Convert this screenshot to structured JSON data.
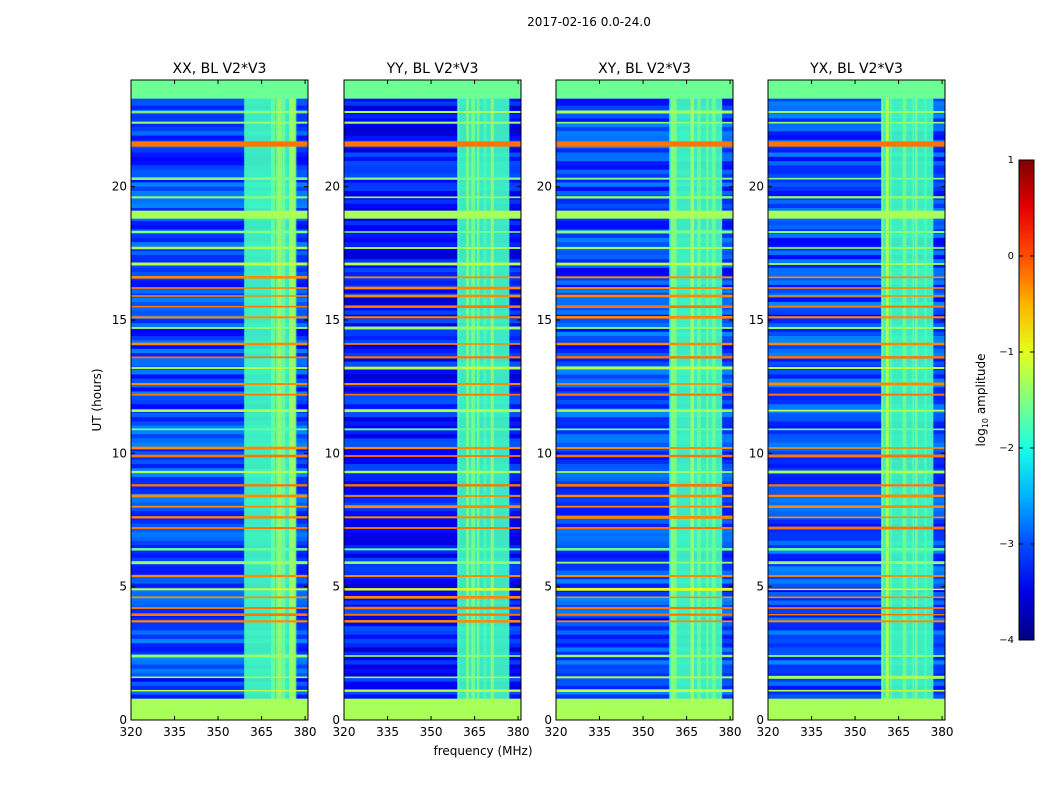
{
  "suptitle": "2017-02-16 0.0-24.0",
  "chart_data": {
    "type": "heatmap",
    "x_label": "frequency (MHz)",
    "y_label": "UT (hours)",
    "x_range": [
      320,
      381
    ],
    "y_range": [
      0,
      24
    ],
    "x_ticks": [
      320,
      335,
      350,
      365,
      380
    ],
    "y_ticks": [
      0,
      5,
      10,
      15,
      20
    ],
    "rfi_band_mhz": [
      359,
      377
    ],
    "panels": [
      {
        "title": "XX, BL V2*V3",
        "pol": "XX"
      },
      {
        "title": "YY, BL V2*V3",
        "pol": "YY"
      },
      {
        "title": "XY, BL V2*V3",
        "pol": "XY"
      },
      {
        "title": "YX, BL V2*V3",
        "pol": "YX"
      }
    ],
    "dense_bands_ut": [
      {
        "from": 0.0,
        "to": 0.8,
        "level": -1.3
      },
      {
        "from": 18.8,
        "to": 19.1,
        "level": -1.3
      },
      {
        "from": 21.5,
        "to": 21.7,
        "level": -0.2
      },
      {
        "from": 23.3,
        "to": 24.0,
        "level": -1.6
      }
    ],
    "flagged_lines_ut": [
      {
        "t": 1.1,
        "level": -1.2
      },
      {
        "t": 1.6,
        "level": -1.3
      },
      {
        "t": 2.4,
        "level": -1.4
      },
      {
        "t": 3.7,
        "level": -0.3
      },
      {
        "t": 3.95,
        "level": -0.2
      },
      {
        "t": 4.2,
        "level": -0.2
      },
      {
        "t": 4.6,
        "level": -0.3
      },
      {
        "t": 4.9,
        "level": -1.0
      },
      {
        "t": 5.4,
        "level": -0.3
      },
      {
        "t": 5.9,
        "level": -1.4
      },
      {
        "t": 6.4,
        "level": -1.6
      },
      {
        "t": 7.2,
        "level": -0.2
      },
      {
        "t": 7.6,
        "level": -0.3
      },
      {
        "t": 8.0,
        "level": -0.3
      },
      {
        "t": 8.4,
        "level": -0.3
      },
      {
        "t": 8.8,
        "level": -0.2
      },
      {
        "t": 9.3,
        "level": -1.3
      },
      {
        "t": 9.9,
        "level": -0.2
      },
      {
        "t": 10.2,
        "level": -0.3
      },
      {
        "t": 10.9,
        "level": -1.6
      },
      {
        "t": 11.6,
        "level": -1.3
      },
      {
        "t": 12.2,
        "level": -0.2
      },
      {
        "t": 12.6,
        "level": -0.3
      },
      {
        "t": 13.2,
        "level": -1.2
      },
      {
        "t": 13.6,
        "level": -0.2
      },
      {
        "t": 14.1,
        "level": -0.3
      },
      {
        "t": 14.7,
        "level": -1.4
      },
      {
        "t": 15.1,
        "level": -0.3
      },
      {
        "t": 15.5,
        "level": -0.2
      },
      {
        "t": 15.9,
        "level": -0.3
      },
      {
        "t": 16.2,
        "level": -0.3
      },
      {
        "t": 16.6,
        "level": -0.3
      },
      {
        "t": 17.1,
        "level": -1.2
      },
      {
        "t": 17.7,
        "level": -1.3
      },
      {
        "t": 18.3,
        "level": -1.5
      },
      {
        "t": 19.6,
        "level": -1.4
      },
      {
        "t": 20.3,
        "level": -1.5
      },
      {
        "t": 22.4,
        "level": -1.4
      },
      {
        "t": 22.8,
        "level": -1.3
      }
    ],
    "colorbar": {
      "label": "log10 amplitude",
      "label_base": "log",
      "label_sub": "10",
      "label_rest": " amplitude",
      "range": [
        -4,
        1
      ],
      "ticks": [
        "1",
        "0",
        "−1",
        "−2",
        "−3",
        "−4"
      ],
      "colormap": "jet"
    }
  }
}
